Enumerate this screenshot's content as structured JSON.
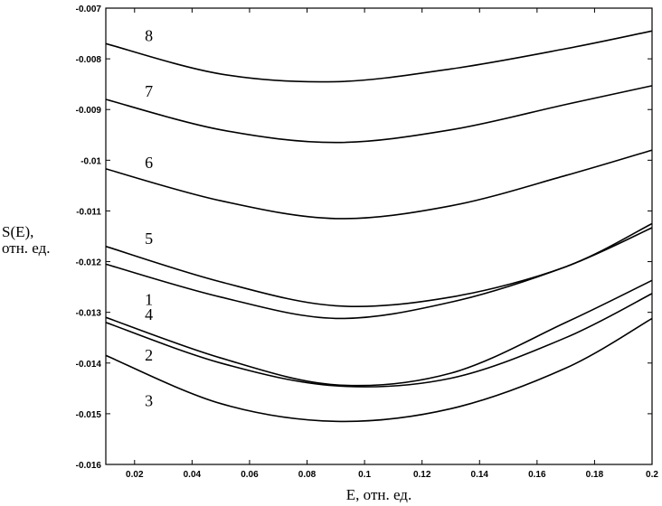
{
  "chart_data": {
    "type": "line",
    "xlabel": "E, отн. ед.",
    "ylabel_line1": "S(E),",
    "ylabel_line2": "отн. ед.",
    "xlim": [
      0.01,
      0.2
    ],
    "ylim": [
      -0.016,
      -0.007
    ],
    "grid": false,
    "x_ticks": [
      0.02,
      0.04,
      0.06,
      0.08,
      0.1,
      0.12,
      0.14,
      0.16,
      0.18,
      0.2
    ],
    "x_tick_labels": [
      "0.02",
      "0.04",
      "0.06",
      "0.08",
      "0.1",
      "0.12",
      "0.14",
      "0.16",
      "0.18",
      "0.2"
    ],
    "y_ticks": [
      -0.016,
      -0.015,
      -0.014,
      -0.013,
      -0.012,
      -0.011,
      -0.01,
      -0.009,
      -0.008,
      -0.007
    ],
    "y_tick_labels": [
      "-0.016",
      "-0.015",
      "-0.014",
      "-0.013",
      "-0.012",
      "-0.011",
      "-0.01",
      "-0.009",
      "-0.008",
      "-0.007"
    ],
    "series": [
      {
        "label": "8",
        "label_at": [
          0.025,
          -0.00765
        ],
        "x": [
          0.01,
          0.05,
          0.09,
          0.13,
          0.17,
          0.2
        ],
        "y": [
          -0.0077,
          -0.0083,
          -0.00845,
          -0.0082,
          -0.0078,
          -0.00745
        ]
      },
      {
        "label": "7",
        "label_at": [
          0.025,
          -0.00875
        ],
        "x": [
          0.01,
          0.05,
          0.09,
          0.13,
          0.17,
          0.2
        ],
        "y": [
          -0.0088,
          -0.0094,
          -0.00965,
          -0.0094,
          -0.0089,
          -0.00853
        ]
      },
      {
        "label": "6",
        "label_at": [
          0.025,
          -0.01015
        ],
        "x": [
          0.01,
          0.05,
          0.09,
          0.13,
          0.17,
          0.2
        ],
        "y": [
          -0.01017,
          -0.0108,
          -0.01115,
          -0.0109,
          -0.0103,
          -0.0098
        ]
      },
      {
        "label": "5",
        "label_at": [
          0.025,
          -0.01165
        ],
        "x": [
          0.01,
          0.05,
          0.09,
          0.13,
          0.17,
          0.2
        ],
        "y": [
          -0.0117,
          -0.0124,
          -0.01287,
          -0.0127,
          -0.0121,
          -0.01125
        ]
      },
      {
        "label": "1",
        "label_at": [
          0.025,
          -0.01285
        ],
        "x": [
          0.01,
          0.05,
          0.09,
          0.13,
          0.17,
          0.2
        ],
        "y": [
          -0.01205,
          -0.0127,
          -0.01312,
          -0.0128,
          -0.0121,
          -0.01133
        ]
      },
      {
        "label": "4",
        "label_at": [
          0.025,
          -0.01315
        ],
        "x": [
          0.01,
          0.05,
          0.09,
          0.13,
          0.17,
          0.2
        ],
        "y": [
          -0.0131,
          -0.0139,
          -0.01443,
          -0.0142,
          -0.0132,
          -0.01237
        ]
      },
      {
        "label": "2",
        "label_at": [
          0.025,
          -0.01395
        ],
        "x": [
          0.01,
          0.05,
          0.09,
          0.13,
          0.17,
          0.2
        ],
        "y": [
          -0.0132,
          -0.014,
          -0.01445,
          -0.0143,
          -0.0135,
          -0.01263
        ]
      },
      {
        "label": "3",
        "label_at": [
          0.025,
          -0.01485
        ],
        "x": [
          0.01,
          0.05,
          0.09,
          0.13,
          0.17,
          0.2
        ],
        "y": [
          -0.01385,
          -0.0148,
          -0.01515,
          -0.0149,
          -0.0141,
          -0.01312
        ]
      }
    ]
  }
}
